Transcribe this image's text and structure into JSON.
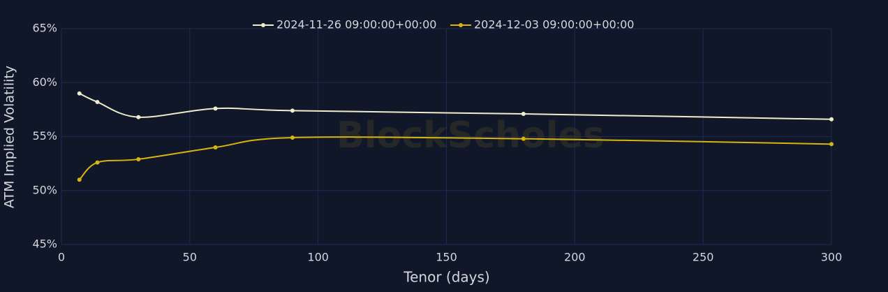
{
  "chart_data": {
    "type": "line",
    "watermark": "BlockScholes",
    "xlabel": "Tenor (days)",
    "ylabel": "ATM Implied Volatility",
    "x": [
      7,
      14,
      30,
      60,
      90,
      180,
      300
    ],
    "series": [
      {
        "name": "2024-11-26 09:00:00+00:00",
        "color": "#eeeccb",
        "values": [
          59.0,
          58.2,
          56.8,
          57.6,
          57.4,
          57.1,
          56.6
        ]
      },
      {
        "name": "2024-12-03 09:00:00+00:00",
        "color": "#d8b410",
        "values": [
          51.0,
          52.6,
          52.9,
          54.0,
          54.9,
          54.8,
          54.3
        ]
      }
    ],
    "xlim": [
      0,
      300
    ],
    "xticks": [
      0,
      50,
      100,
      150,
      200,
      250,
      300
    ],
    "ylim": [
      45,
      65
    ],
    "yticks": [
      {
        "value": 45,
        "label": "45%"
      },
      {
        "value": 50,
        "label": "50%"
      },
      {
        "value": 55,
        "label": "55%"
      },
      {
        "value": 60,
        "label": "60%"
      },
      {
        "value": 65,
        "label": "65%"
      }
    ],
    "grid": true,
    "legend": "top"
  }
}
